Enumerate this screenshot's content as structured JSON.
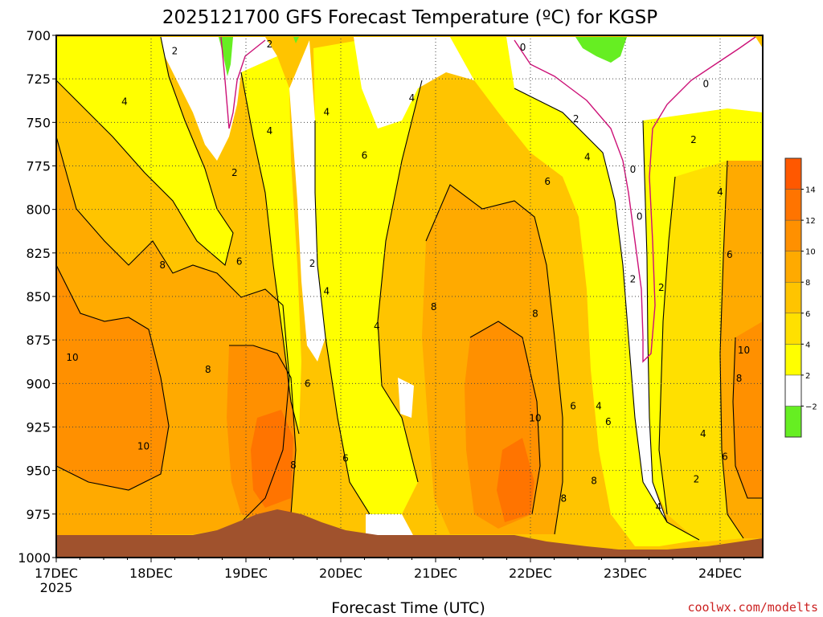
{
  "chart_data": {
    "type": "heatmap",
    "title": "2025121700 GFS Forecast Temperature (ºC) for KGSP",
    "xlabel": "Forecast Time (UTC)",
    "ylabel": "",
    "credit": "coolwx.com/modelts",
    "x_ticks": [
      "17DEC",
      "18DEC",
      "19DEC",
      "20DEC",
      "21DEC",
      "22DEC",
      "23DEC",
      "24DEC"
    ],
    "x_first_tick_year": "2025",
    "xlim_days": [
      0,
      7.45
    ],
    "y_ticks": [
      700,
      725,
      750,
      775,
      800,
      825,
      850,
      875,
      900,
      925,
      950,
      975,
      1000
    ],
    "ylim": [
      1000,
      700
    ],
    "y_scale": "pressure (hPa), inverted",
    "grid": true,
    "legend": {
      "placement": "right",
      "labels": [
        "14",
        "12",
        "10",
        "8",
        "6",
        "4",
        "2",
        "−2"
      ],
      "bins": [
        {
          "range": [
            -4,
            -2
          ],
          "color": "#66ee22"
        },
        {
          "range": [
            -2,
            2
          ],
          "color": "#ffffff"
        },
        {
          "range": [
            2,
            4
          ],
          "color": "#ffff00"
        },
        {
          "range": [
            4,
            6
          ],
          "color": "#ffe000"
        },
        {
          "range": [
            6,
            8
          ],
          "color": "#ffc400"
        },
        {
          "range": [
            8,
            10
          ],
          "color": "#ffaa00"
        },
        {
          "range": [
            10,
            12
          ],
          "color": "#ff9000"
        },
        {
          "range": [
            12,
            14
          ],
          "color": "#ff7400"
        },
        {
          "range": [
            14,
            16
          ],
          "color": "#ff5800"
        }
      ]
    },
    "contour_labels": [
      {
        "text": "2",
        "day": 1.25,
        "p": 709
      },
      {
        "text": "4",
        "day": 0.72,
        "p": 738
      },
      {
        "text": "10",
        "day": 0.17,
        "p": 885
      },
      {
        "text": "8",
        "day": 1.12,
        "p": 832
      },
      {
        "text": "10",
        "day": 0.92,
        "p": 936
      },
      {
        "text": "2",
        "day": 1.88,
        "p": 779
      },
      {
        "text": "6",
        "day": 1.93,
        "p": 830
      },
      {
        "text": "8",
        "day": 1.6,
        "p": 892
      },
      {
        "text": "2",
        "day": 2.25,
        "p": 705
      },
      {
        "text": "4",
        "day": 2.25,
        "p": 755
      },
      {
        "text": "8",
        "day": 2.5,
        "p": 947
      },
      {
        "text": "2",
        "day": 2.7,
        "p": 831
      },
      {
        "text": "4",
        "day": 2.85,
        "p": 744
      },
      {
        "text": "4",
        "day": 2.85,
        "p": 847
      },
      {
        "text": "6",
        "day": 2.65,
        "p": 900
      },
      {
        "text": "6",
        "day": 3.05,
        "p": 943
      },
      {
        "text": "4",
        "day": 3.75,
        "p": 736
      },
      {
        "text": "6",
        "day": 3.25,
        "p": 769
      },
      {
        "text": "4",
        "day": 3.38,
        "p": 867
      },
      {
        "text": "8",
        "day": 3.98,
        "p": 856
      },
      {
        "text": "0",
        "day": 4.92,
        "p": 707
      },
      {
        "text": "2",
        "day": 5.48,
        "p": 748
      },
      {
        "text": "4",
        "day": 5.6,
        "p": 770
      },
      {
        "text": "6",
        "day": 5.18,
        "p": 784
      },
      {
        "text": "8",
        "day": 5.05,
        "p": 860
      },
      {
        "text": "10",
        "day": 5.05,
        "p": 920
      },
      {
        "text": "6",
        "day": 5.45,
        "p": 913
      },
      {
        "text": "4",
        "day": 5.72,
        "p": 913
      },
      {
        "text": "8",
        "day": 5.35,
        "p": 966
      },
      {
        "text": "6",
        "day": 5.82,
        "p": 922
      },
      {
        "text": "8",
        "day": 5.67,
        "p": 956
      },
      {
        "text": "0",
        "day": 6.08,
        "p": 777
      },
      {
        "text": "0",
        "day": 6.15,
        "p": 804
      },
      {
        "text": "2",
        "day": 6.08,
        "p": 840
      },
      {
        "text": "2",
        "day": 6.38,
        "p": 845
      },
      {
        "text": "4",
        "day": 6.35,
        "p": 971
      },
      {
        "text": "0",
        "day": 6.85,
        "p": 728
      },
      {
        "text": "2",
        "day": 6.72,
        "p": 760
      },
      {
        "text": "4",
        "day": 7.0,
        "p": 790
      },
      {
        "text": "6",
        "day": 7.1,
        "p": 826
      },
      {
        "text": "10",
        "day": 7.25,
        "p": 881
      },
      {
        "text": "8",
        "day": 7.2,
        "p": 897
      },
      {
        "text": "4",
        "day": 6.82,
        "p": 929
      },
      {
        "text": "6",
        "day": 7.05,
        "p": 942
      },
      {
        "text": "2",
        "day": 6.75,
        "p": 955
      }
    ]
  }
}
